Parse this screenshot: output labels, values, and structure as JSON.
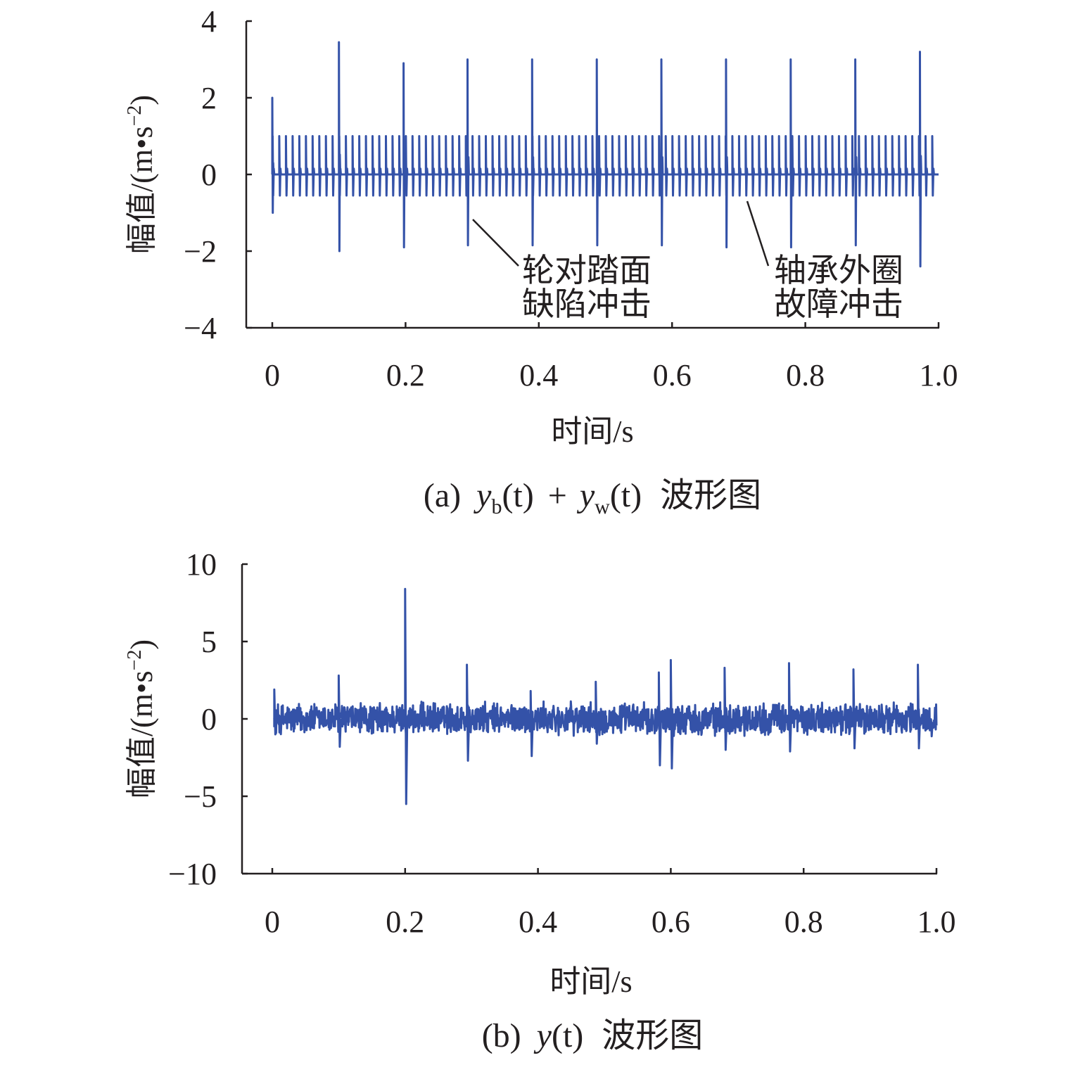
{
  "chart_data": [
    {
      "type": "line",
      "panel": "a",
      "caption": {
        "prefix": "(a)",
        "y1": "y",
        "sub1": "b",
        "paren1": "(t)",
        "plus": "+",
        "y2": "y",
        "sub2": "w",
        "paren2": "(t)",
        "suffix": "波形图"
      },
      "xlabel": "时间/s",
      "ylabel": "幅值/(m•s",
      "ylabel_sup": "−2",
      "ylabel_close": ")",
      "xlim": [
        0,
        1.0
      ],
      "ylim": [
        -4,
        4
      ],
      "x_ticks": [
        0,
        0.2,
        0.4,
        0.6,
        0.8,
        1.0
      ],
      "x_tick_labels": [
        "0",
        "0.2",
        "0.4",
        "0.6",
        "0.8",
        "1.0"
      ],
      "y_ticks": [
        4,
        2,
        0,
        -2,
        -4
      ],
      "y_tick_labels": [
        "4",
        "2",
        "0",
        "−2",
        "−4"
      ],
      "color": "#3452a8",
      "bearing_impulse_period": 0.01,
      "bearing_impulse_peak": 1.0,
      "bearing_impulse_trough": -0.55,
      "wheel_impacts": [
        {
          "t": 0.0,
          "peak": 2.0,
          "trough": -1.0
        },
        {
          "t": 0.1,
          "peak": 3.45,
          "trough": -2.0
        },
        {
          "t": 0.197,
          "peak": 2.9,
          "trough": -1.9
        },
        {
          "t": 0.293,
          "peak": 3.0,
          "trough": -1.85
        },
        {
          "t": 0.39,
          "peak": 3.0,
          "trough": -1.85
        },
        {
          "t": 0.487,
          "peak": 3.0,
          "trough": -1.85
        },
        {
          "t": 0.584,
          "peak": 3.0,
          "trough": -1.85
        },
        {
          "t": 0.681,
          "peak": 3.0,
          "trough": -1.9
        },
        {
          "t": 0.778,
          "peak": 3.0,
          "trough": -1.9
        },
        {
          "t": 0.875,
          "peak": 3.0,
          "trough": -1.85
        },
        {
          "t": 0.972,
          "peak": 3.2,
          "trough": -2.4
        }
      ],
      "annotations": [
        {
          "line1": "轮对踏面",
          "line2": "缺陷冲击",
          "target": [
            0.3,
            -1.2
          ]
        },
        {
          "line1": "轴承外圈",
          "line2": "故障冲击",
          "target": [
            0.71,
            -0.7
          ]
        }
      ]
    },
    {
      "type": "line",
      "panel": "b",
      "caption": {
        "prefix": "(b)",
        "y1": "y",
        "paren1": "(t)",
        "suffix": "波形图"
      },
      "xlabel": "时间/s",
      "ylabel": "幅值/(m•s",
      "ylabel_sup": "−2",
      "ylabel_close": ")",
      "xlim": [
        0,
        1.0
      ],
      "ylim": [
        -10,
        10
      ],
      "x_ticks": [
        0,
        0.2,
        0.4,
        0.6,
        0.8,
        1.0
      ],
      "x_tick_labels": [
        "0",
        "0.2",
        "0.4",
        "0.6",
        "0.8",
        "1.0"
      ],
      "y_ticks": [
        10,
        5,
        0,
        -5,
        -10
      ],
      "y_tick_labels": [
        "10",
        "5",
        "0",
        "−5",
        "−10"
      ],
      "color": "#3452a8",
      "noise_band": [
        -1.5,
        1.5
      ],
      "impacts": [
        {
          "t": 0.003,
          "peak": 1.9,
          "trough": -1.0
        },
        {
          "t": 0.1,
          "peak": 2.8,
          "trough": -1.8
        },
        {
          "t": 0.2,
          "peak": 8.4,
          "trough": -5.5
        },
        {
          "t": 0.293,
          "peak": 3.5,
          "trough": -2.7
        },
        {
          "t": 0.389,
          "peak": 1.8,
          "trough": -2.4
        },
        {
          "t": 0.487,
          "peak": 2.4,
          "trough": -1.6
        },
        {
          "t": 0.582,
          "peak": 3.0,
          "trough": -3.0
        },
        {
          "t": 0.6,
          "peak": 3.8,
          "trough": -3.2
        },
        {
          "t": 0.681,
          "peak": 3.3,
          "trough": -2.0
        },
        {
          "t": 0.778,
          "peak": 3.6,
          "trough": -2.1
        },
        {
          "t": 0.875,
          "peak": 3.2,
          "trough": -1.9
        },
        {
          "t": 0.972,
          "peak": 3.5,
          "trough": -1.9
        }
      ]
    }
  ]
}
